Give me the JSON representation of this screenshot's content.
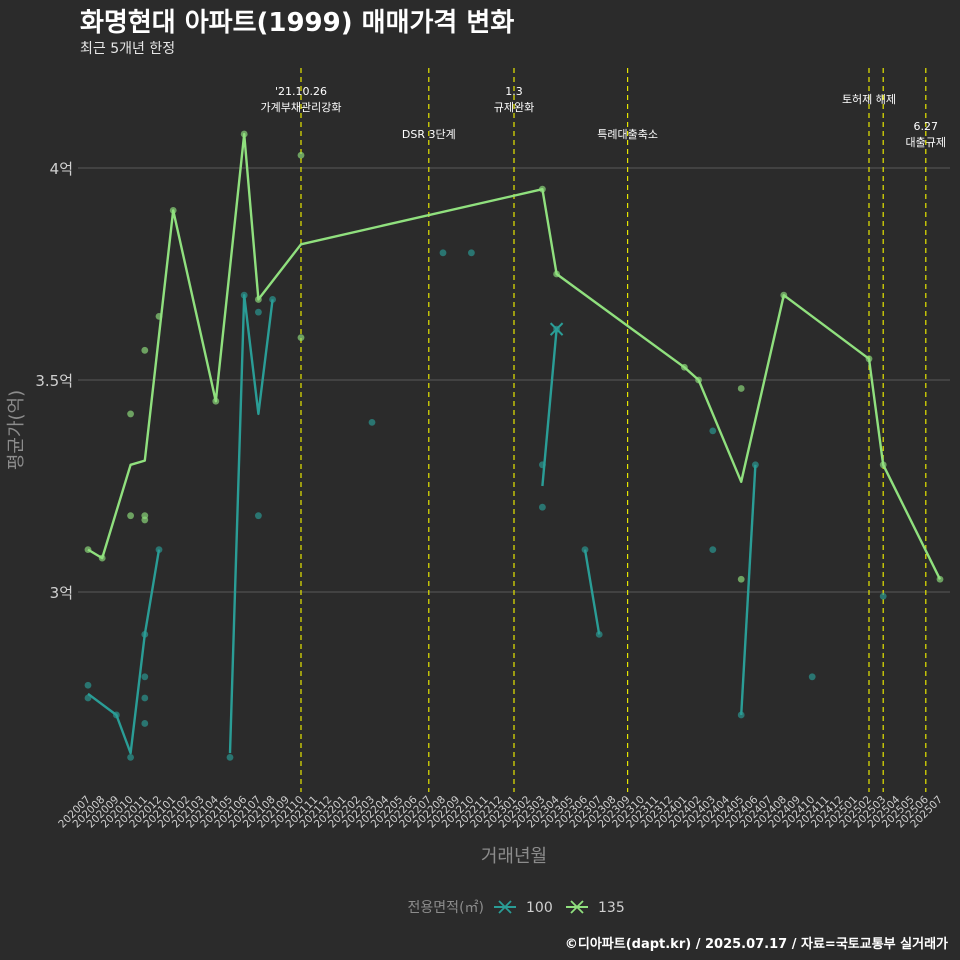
{
  "title": "화명현대 아파트(1999) 매매가격 변화",
  "subtitle": "최근 5개년 한정",
  "caption": "©디아파트(dapt.kr) / 2025.07.17 / 자료=국토교통부 실거래가",
  "colors": {
    "background": "#2b2b2b",
    "grid": "#5a5a5a",
    "event_line": "#e6e600",
    "s100": "#2a9d96",
    "s135": "#90e07e",
    "axis_text": "#d0d0d0",
    "axis_title": "#8c8c8c"
  },
  "chart_data": {
    "type": "line",
    "xlabel": "거래년월",
    "ylabel": "평균가(억)",
    "legend_title": "전용면적(㎡)",
    "legend_position": "bottom",
    "ylim": [
      2.55,
      4.1
    ],
    "y_ticks": [
      3.0,
      3.5,
      4.0
    ],
    "y_tick_labels": [
      "3억",
      "3.5억",
      "4억"
    ],
    "x_categories": [
      "202007",
      "202008",
      "202009",
      "202010",
      "202011",
      "202012",
      "202101",
      "202102",
      "202103",
      "202104",
      "202105",
      "202106",
      "202107",
      "202108",
      "202109",
      "202110",
      "202111",
      "202112",
      "202201",
      "202202",
      "202203",
      "202204",
      "202205",
      "202206",
      "202207",
      "202208",
      "202209",
      "202210",
      "202211",
      "202212",
      "202301",
      "202302",
      "202303",
      "202304",
      "202305",
      "202306",
      "202307",
      "202308",
      "202309",
      "202310",
      "202311",
      "202312",
      "202401",
      "202402",
      "202403",
      "202404",
      "202405",
      "202406",
      "202407",
      "202408",
      "202409",
      "202410",
      "202411",
      "202412",
      "202501",
      "202502",
      "202503",
      "202504",
      "202505",
      "202506",
      "202507"
    ],
    "events": [
      {
        "x": "202110",
        "label": "'21.10.26\n가계부채관리강화",
        "row": 0
      },
      {
        "x": "202207",
        "label": "DSR 3단계",
        "row": 1
      },
      {
        "x": "202301",
        "label": "1.3\n규제완화",
        "row": 0
      },
      {
        "x": "202309",
        "label": "특례대출축소",
        "row": 1
      },
      {
        "x": "202502",
        "label": "토허제 해제",
        "row": 0
      },
      {
        "x": "202503",
        "label": "",
        "row": 0
      },
      {
        "x": "202506",
        "label": "6.27\n대출규제",
        "row": 2
      }
    ],
    "series": [
      {
        "name": "100",
        "line_segments": [
          [
            [
              "202007",
              2.76
            ],
            [
              "202009",
              2.71
            ],
            [
              "202010",
              2.62
            ],
            [
              "202011",
              2.9
            ],
            [
              "202012",
              3.1
            ]
          ],
          [
            [
              "202105",
              2.62
            ],
            [
              "202106",
              3.7
            ],
            [
              "202107",
              3.42
            ],
            [
              "202108",
              3.69
            ]
          ],
          [
            [
              "202303",
              3.25
            ],
            [
              "202304",
              3.62
            ]
          ],
          [
            [
              "202306",
              3.1
            ],
            [
              "202307",
              2.9
            ]
          ],
          [
            [
              "202405",
              2.71
            ],
            [
              "202406",
              3.3
            ]
          ]
        ],
        "points": [
          [
            "202007",
            2.78
          ],
          [
            "202007",
            2.75
          ],
          [
            "202009",
            2.71
          ],
          [
            "202010",
            2.61
          ],
          [
            "202011",
            2.9
          ],
          [
            "202011",
            2.8
          ],
          [
            "202011",
            2.75
          ],
          [
            "202011",
            2.69
          ],
          [
            "202012",
            3.1
          ],
          [
            "202105",
            2.61
          ],
          [
            "202106",
            3.7
          ],
          [
            "202107",
            3.66
          ],
          [
            "202107",
            3.18
          ],
          [
            "202108",
            3.69
          ],
          [
            "202203",
            3.4
          ],
          [
            "202208",
            3.8
          ],
          [
            "202210",
            3.8
          ],
          [
            "202303",
            3.3
          ],
          [
            "202303",
            3.2
          ],
          [
            "202304",
            3.62
          ],
          [
            "202306",
            3.1
          ],
          [
            "202307",
            2.9
          ],
          [
            "202403",
            3.38
          ],
          [
            "202403",
            3.1
          ],
          [
            "202405",
            2.71
          ],
          [
            "202406",
            3.3
          ],
          [
            "202410",
            2.8
          ],
          [
            "202503",
            2.99
          ]
        ],
        "cross_marker": [
          "202304",
          3.62
        ]
      },
      {
        "name": "135",
        "line": [
          [
            "202007",
            3.1
          ],
          [
            "202008",
            3.08
          ],
          [
            "202010",
            3.3
          ],
          [
            "202011",
            3.31
          ],
          [
            "202101",
            3.9
          ],
          [
            "202104",
            3.45
          ],
          [
            "202106",
            4.08
          ],
          [
            "202107",
            3.69
          ],
          [
            "202110",
            3.82
          ],
          [
            "202303",
            3.95
          ],
          [
            "202304",
            3.75
          ],
          [
            "202401",
            3.53
          ],
          [
            "202402",
            3.5
          ],
          [
            "202405",
            3.26
          ],
          [
            "202408",
            3.7
          ],
          [
            "202502",
            3.55
          ],
          [
            "202503",
            3.3
          ],
          [
            "202507",
            3.03
          ]
        ],
        "points": [
          [
            "202007",
            3.1
          ],
          [
            "202008",
            3.08
          ],
          [
            "202010",
            3.42
          ],
          [
            "202010",
            3.18
          ],
          [
            "202011",
            3.57
          ],
          [
            "202011",
            3.18
          ],
          [
            "202011",
            3.17
          ],
          [
            "202012",
            3.65
          ],
          [
            "202101",
            3.9
          ],
          [
            "202104",
            3.45
          ],
          [
            "202106",
            4.08
          ],
          [
            "202107",
            3.69
          ],
          [
            "202110",
            4.03
          ],
          [
            "202110",
            3.6
          ],
          [
            "202303",
            3.95
          ],
          [
            "202304",
            3.75
          ],
          [
            "202401",
            3.53
          ],
          [
            "202402",
            3.5
          ],
          [
            "202405",
            3.48
          ],
          [
            "202405",
            3.03
          ],
          [
            "202408",
            3.7
          ],
          [
            "202502",
            3.55
          ],
          [
            "202503",
            3.3
          ],
          [
            "202507",
            3.03
          ]
        ]
      }
    ]
  }
}
